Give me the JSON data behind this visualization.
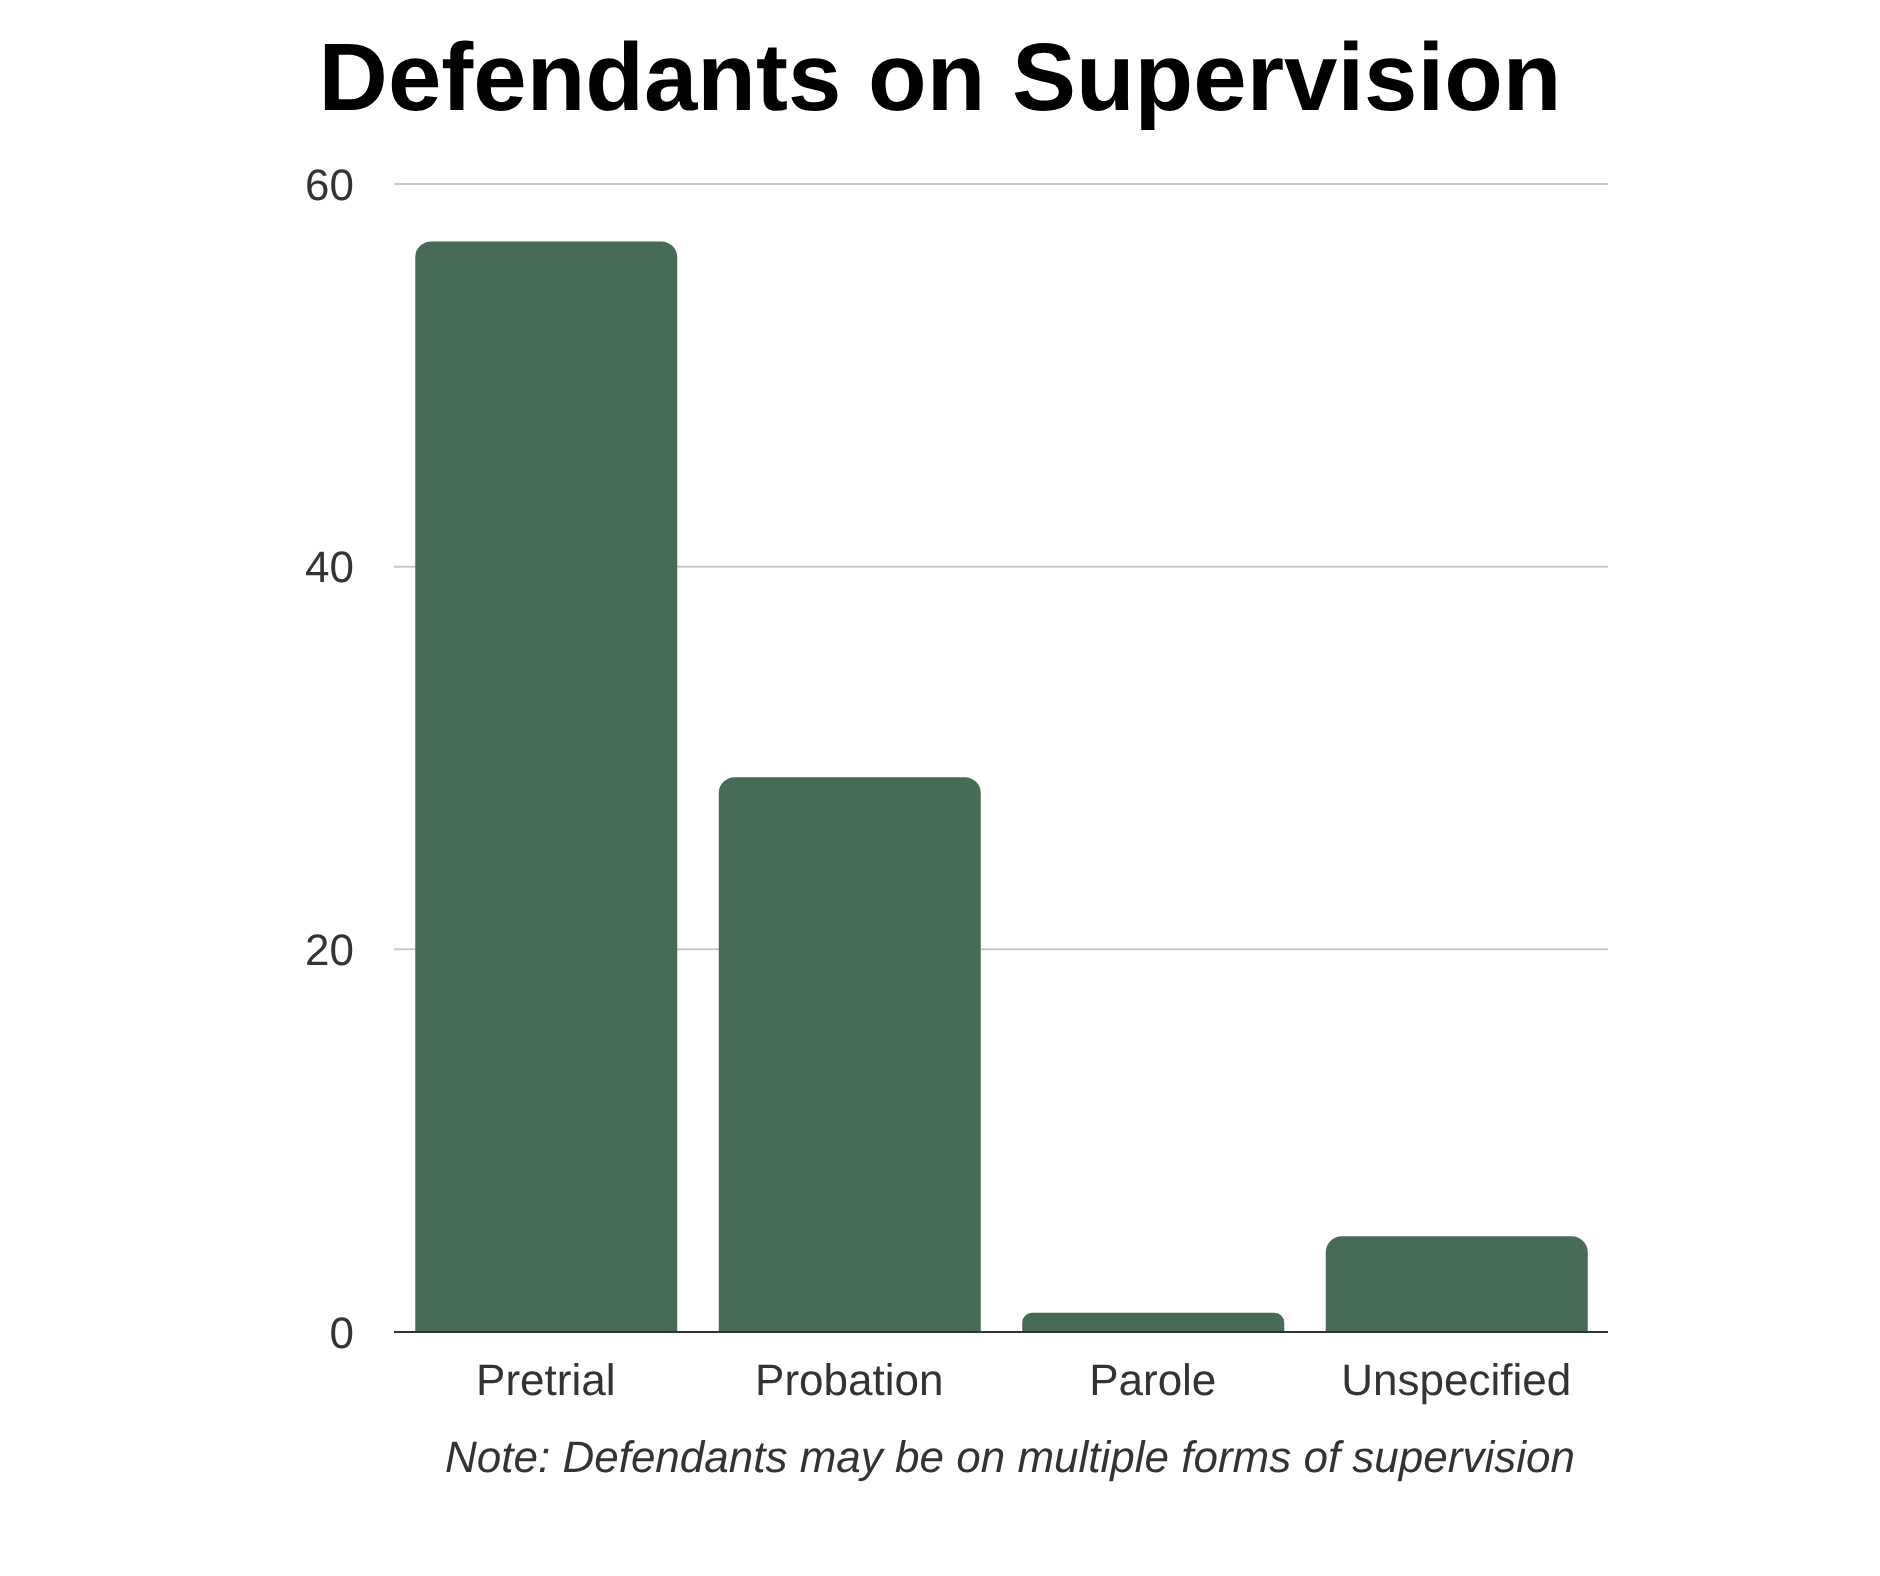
{
  "chart_data": {
    "type": "bar",
    "title": "Defendants on Supervision",
    "categories": [
      "Pretrial",
      "Probation",
      "Parole",
      "Unspecified"
    ],
    "values": [
      57,
      29,
      1,
      5
    ],
    "color": "#466b56",
    "ylim": [
      0,
      60
    ],
    "yticks": [
      0,
      20,
      40,
      60
    ],
    "grid": "y",
    "annotations": [
      "Note: Defendants may be on multiple forms of supervision"
    ]
  }
}
